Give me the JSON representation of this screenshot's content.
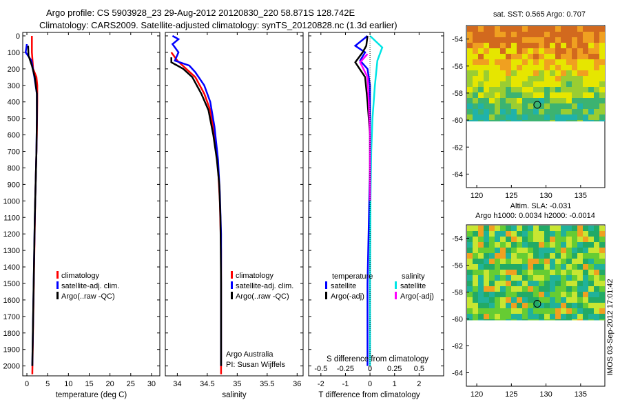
{
  "header": {
    "line1": "Argo profile: CS 5903928_23 29-Aug-2012 20120830_220 58.871S 128.742E",
    "line2": "Climatology: CARS2009. Satellite-adjusted climatology: synTS_20120828.nc (1.3d earlier)"
  },
  "colors": {
    "climatology": "#ff0000",
    "satellite": "#0000ff",
    "argo": "#000000",
    "sat_salinity": "#00e5e5",
    "argo_adj_salinity": "#ff00ff"
  },
  "depth_ticks": [
    "0",
    "100",
    "200",
    "300",
    "400",
    "500",
    "600",
    "700",
    "800",
    "900",
    "1000",
    "1100",
    "1200",
    "1300",
    "1400",
    "1500",
    "1600",
    "1700",
    "1800",
    "1900",
    "2000"
  ],
  "chart_data": [
    {
      "type": "line",
      "xlabel": "temperature (deg C)",
      "x_ticks": [
        "0",
        "5",
        "10",
        "15",
        "20",
        "25",
        "30"
      ],
      "xlim": [
        -1,
        32
      ],
      "ylim": [
        0,
        2060
      ],
      "y_reversed": true,
      "legend": [
        "climatology",
        "satellite-adj. clim.",
        "Argo(..raw -QC)"
      ],
      "series": [
        {
          "name": "climatology",
          "color": "#ff0000",
          "points": [
            [
              1.2,
              0
            ],
            [
              1.2,
              100
            ],
            [
              1.5,
              200
            ],
            [
              2.3,
              250
            ],
            [
              2.5,
              300
            ],
            [
              2.5,
              400
            ],
            [
              2.4,
              600
            ],
            [
              2.2,
              800
            ],
            [
              2.0,
              1000
            ],
            [
              1.8,
              1300
            ],
            [
              1.6,
              1600
            ],
            [
              1.4,
              1900
            ],
            [
              1.3,
              2050
            ]
          ]
        },
        {
          "name": "satellite-adj. clim.",
          "color": "#0000ff",
          "points": [
            [
              0,
              50
            ],
            [
              -0.3,
              100
            ],
            [
              1.1,
              150
            ],
            [
              1.8,
              250
            ],
            [
              2.4,
              350
            ],
            [
              2.4,
              500
            ],
            [
              2.3,
              700
            ],
            [
              2.1,
              900
            ],
            [
              1.9,
              1100
            ],
            [
              1.7,
              1400
            ],
            [
              1.5,
              1700
            ],
            [
              1.3,
              2000
            ]
          ]
        },
        {
          "name": "Argo(..raw -QC)",
          "color": "#000000",
          "points": [
            [
              0.3,
              60
            ],
            [
              0.4,
              120
            ],
            [
              1.2,
              180
            ],
            [
              1.9,
              250
            ],
            [
              2.4,
              350
            ],
            [
              2.4,
              500
            ],
            [
              2.3,
              700
            ],
            [
              2.1,
              900
            ],
            [
              1.9,
              1100
            ],
            [
              1.7,
              1400
            ],
            [
              1.5,
              1700
            ],
            [
              1.3,
              2000
            ]
          ]
        }
      ]
    },
    {
      "type": "line",
      "xlabel": "salinity",
      "x_ticks": [
        "34",
        "34.5",
        "35",
        "35.5",
        "36"
      ],
      "xlim": [
        33.8,
        36.1
      ],
      "ylim": [
        0,
        2060
      ],
      "y_reversed": true,
      "legend": [
        "climatology",
        "satellite-adj. clim.",
        "Argo(..raw -QC)"
      ],
      "annotation": [
        "Argo Australia",
        "PI: Susan Wijffels"
      ],
      "series": [
        {
          "name": "climatology",
          "color": "#ff0000",
          "points": [
            [
              33.9,
              100
            ],
            [
              34.0,
              150
            ],
            [
              34.15,
              200
            ],
            [
              34.3,
              250
            ],
            [
              34.45,
              350
            ],
            [
              34.55,
              450
            ],
            [
              34.62,
              600
            ],
            [
              34.68,
              800
            ],
            [
              34.71,
              1000
            ],
            [
              34.73,
              1300
            ],
            [
              34.73,
              1700
            ],
            [
              34.73,
              2050
            ]
          ]
        },
        {
          "name": "satellite-adj. clim.",
          "color": "#0000ff",
          "points": [
            [
              33.92,
              0
            ],
            [
              34.02,
              20
            ],
            [
              33.92,
              50
            ],
            [
              34.02,
              100
            ],
            [
              33.96,
              150
            ],
            [
              34.2,
              180
            ],
            [
              34.3,
              220
            ],
            [
              34.45,
              300
            ],
            [
              34.55,
              400
            ],
            [
              34.62,
              550
            ],
            [
              34.68,
              750
            ],
            [
              34.71,
              950
            ],
            [
              34.73,
              1200
            ],
            [
              34.73,
              1600
            ],
            [
              34.73,
              2000
            ]
          ]
        },
        {
          "name": "Argo(..raw -QC)",
          "color": "#000000",
          "points": [
            [
              33.9,
              130
            ],
            [
              33.9,
              160
            ],
            [
              34.1,
              200
            ],
            [
              34.25,
              250
            ],
            [
              34.4,
              350
            ],
            [
              34.52,
              450
            ],
            [
              34.6,
              600
            ],
            [
              34.66,
              750
            ],
            [
              34.7,
              900
            ],
            [
              34.72,
              1100
            ],
            [
              34.73,
              1500
            ],
            [
              34.73,
              2000
            ]
          ]
        }
      ]
    },
    {
      "type": "line",
      "xlabel": "T difference from climatology",
      "x_ticks": [
        "-2",
        "-1",
        "0",
        "1",
        "2"
      ],
      "s_label": "S difference from climatology",
      "s_ticks": [
        "-0.5",
        "-0.25",
        "0",
        "0.25",
        "0.5"
      ],
      "xlim": [
        -2.5,
        3
      ],
      "ylim": [
        0,
        2060
      ],
      "y_reversed": true,
      "legend_temperature_title": "temperature",
      "legend_salinity_title": "salinity",
      "legend": [
        "satellite",
        "Argo(-adj)",
        "satellite",
        "Argo(-adj)"
      ],
      "series": [
        {
          "name": "temperature satellite",
          "color": "#0000ff",
          "points": [
            [
              -0.1,
              0
            ],
            [
              -0.6,
              60
            ],
            [
              -0.2,
              100
            ],
            [
              -0.4,
              150
            ],
            [
              -0.1,
              200
            ],
            [
              0,
              300
            ],
            [
              0,
              800
            ],
            [
              -0.1,
              1500
            ],
            [
              -0.1,
              2000
            ]
          ]
        },
        {
          "name": "temperature Argo(-adj)",
          "color": "#000000",
          "points": [
            [
              -0.1,
              0
            ],
            [
              -0.15,
              60
            ],
            [
              -0.3,
              100
            ],
            [
              -0.6,
              160
            ],
            [
              -0.2,
              250
            ],
            [
              -0.1,
              400
            ],
            [
              0,
              600
            ],
            [
              0,
              1000
            ]
          ]
        },
        {
          "name": "salinity satellite",
          "color": "#00e5e5",
          "points": [
            [
              0,
              0
            ],
            [
              0.5,
              70
            ],
            [
              0.3,
              150
            ],
            [
              0.2,
              300
            ],
            [
              0.1,
              500
            ],
            [
              0.05,
              700
            ],
            [
              0.02,
              1000
            ],
            [
              0,
              1500
            ],
            [
              0,
              2000
            ]
          ]
        },
        {
          "name": "salinity Argo(-adj)",
          "color": "#ff00ff",
          "points": [
            [
              -0.1,
              110
            ],
            [
              -0.4,
              160
            ],
            [
              -0.1,
              250
            ],
            [
              -0.05,
              400
            ],
            [
              0,
              600
            ],
            [
              0,
              1000
            ]
          ]
        }
      ]
    },
    {
      "type": "heatmap",
      "title": "sat. SST: 0.565 Argo: 0.707",
      "x_ticks": [
        "120",
        "125",
        "130",
        "135"
      ],
      "y_ticks": [
        "-54",
        "-56",
        "-58",
        "-60",
        "-62",
        "-64"
      ],
      "xlim": [
        118.5,
        138.5
      ],
      "ylim": [
        -65,
        -53
      ],
      "marker": [
        128.742,
        -58.871
      ]
    },
    {
      "type": "heatmap",
      "title": "Altim. SLA: -0.031",
      "subtitle": "Argo h1000: 0.0034 h2000: -0.0014",
      "x_ticks": [
        "120",
        "125",
        "130",
        "135"
      ],
      "y_ticks": [
        "-54",
        "-56",
        "-58",
        "-60",
        "-62",
        "-64"
      ],
      "xlim": [
        118.5,
        138.5
      ],
      "ylim": [
        -65,
        -53
      ],
      "marker": [
        128.742,
        -58.871
      ]
    }
  ],
  "footer_stamp": "IMOS 03-Sep-2012 17:01:42"
}
